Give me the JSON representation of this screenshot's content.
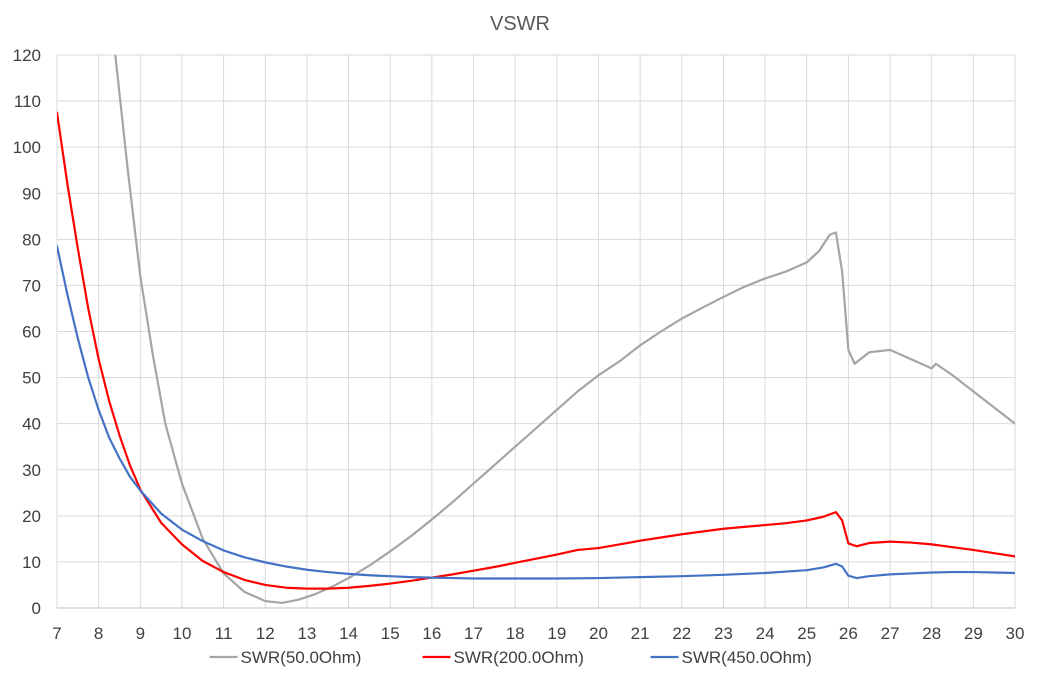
{
  "chart_data": {
    "type": "line",
    "title": "VSWR",
    "xlabel": "",
    "ylabel": "",
    "xlim": [
      7,
      30
    ],
    "ylim": [
      0,
      120
    ],
    "x_ticks": [
      "7",
      "8",
      "9",
      "10",
      "11",
      "12",
      "13",
      "14",
      "15",
      "16",
      "17",
      "18",
      "19",
      "20",
      "21",
      "22",
      "23",
      "24",
      "25",
      "26",
      "27",
      "28",
      "29",
      "30"
    ],
    "y_ticks": [
      "0",
      "10",
      "20",
      "30",
      "40",
      "50",
      "60",
      "70",
      "80",
      "90",
      "100",
      "110",
      "120"
    ],
    "grid": true,
    "legend_position": "bottom",
    "series": [
      {
        "name": "SWR(50.0Ohm)",
        "color": "#a5a5a5",
        "points": [
          [
            8.4,
            120
          ],
          [
            8.7,
            95
          ],
          [
            9.0,
            72
          ],
          [
            9.3,
            55
          ],
          [
            9.6,
            40
          ],
          [
            10.0,
            27
          ],
          [
            10.5,
            15
          ],
          [
            11.0,
            7.5
          ],
          [
            11.5,
            3.5
          ],
          [
            12.0,
            1.5
          ],
          [
            12.4,
            1.1
          ],
          [
            12.8,
            1.8
          ],
          [
            13.2,
            3.0
          ],
          [
            13.6,
            4.6
          ],
          [
            14.0,
            6.5
          ],
          [
            14.5,
            9.2
          ],
          [
            15.0,
            12.3
          ],
          [
            15.5,
            15.6
          ],
          [
            16.0,
            19.2
          ],
          [
            16.5,
            23.0
          ],
          [
            17.0,
            27.0
          ],
          [
            17.5,
            31.0
          ],
          [
            18.0,
            35.0
          ],
          [
            18.5,
            39.0
          ],
          [
            19.0,
            43.0
          ],
          [
            19.5,
            47.0
          ],
          [
            20.0,
            50.5
          ],
          [
            20.5,
            53.5
          ],
          [
            21.0,
            57.0
          ],
          [
            21.5,
            60.0
          ],
          [
            22.0,
            62.8
          ],
          [
            22.5,
            65.2
          ],
          [
            23.0,
            67.5
          ],
          [
            23.5,
            69.7
          ],
          [
            24.0,
            71.5
          ],
          [
            24.5,
            73.0
          ],
          [
            25.0,
            75.0
          ],
          [
            25.3,
            77.5
          ],
          [
            25.55,
            81.0
          ],
          [
            25.7,
            81.5
          ],
          [
            25.85,
            73.0
          ],
          [
            26.0,
            56.0
          ],
          [
            26.15,
            53.0
          ],
          [
            26.5,
            55.5
          ],
          [
            27.0,
            56.0
          ],
          [
            27.5,
            54.0
          ],
          [
            28.0,
            52.0
          ],
          [
            28.1,
            53.0
          ],
          [
            28.5,
            50.5
          ],
          [
            29.0,
            47.0
          ],
          [
            29.5,
            43.5
          ],
          [
            30.0,
            40.0
          ]
        ]
      },
      {
        "name": "SWR(200.0Ohm)",
        "color": "#ff0000",
        "points": [
          [
            7.0,
            107.5
          ],
          [
            7.25,
            92.0
          ],
          [
            7.5,
            78.0
          ],
          [
            7.75,
            65.0
          ],
          [
            8.0,
            54.0
          ],
          [
            8.25,
            45.0
          ],
          [
            8.5,
            37.5
          ],
          [
            8.75,
            31.0
          ],
          [
            9.0,
            25.7
          ],
          [
            9.5,
            18.5
          ],
          [
            10.0,
            13.8
          ],
          [
            10.5,
            10.2
          ],
          [
            11.0,
            7.8
          ],
          [
            11.5,
            6.1
          ],
          [
            12.0,
            5.0
          ],
          [
            12.5,
            4.4
          ],
          [
            13.0,
            4.2
          ],
          [
            13.5,
            4.2
          ],
          [
            14.0,
            4.4
          ],
          [
            14.5,
            4.8
          ],
          [
            15.0,
            5.3
          ],
          [
            15.5,
            5.9
          ],
          [
            16.0,
            6.6
          ],
          [
            16.5,
            7.3
          ],
          [
            17.0,
            8.1
          ],
          [
            17.5,
            8.9
          ],
          [
            18.0,
            9.8
          ],
          [
            18.5,
            10.7
          ],
          [
            19.0,
            11.6
          ],
          [
            19.5,
            12.6
          ],
          [
            20.0,
            13.0
          ],
          [
            20.5,
            13.8
          ],
          [
            21.0,
            14.6
          ],
          [
            21.5,
            15.3
          ],
          [
            22.0,
            16.0
          ],
          [
            22.5,
            16.6
          ],
          [
            23.0,
            17.2
          ],
          [
            23.5,
            17.6
          ],
          [
            24.0,
            18.0
          ],
          [
            24.5,
            18.4
          ],
          [
            25.0,
            19.0
          ],
          [
            25.4,
            19.8
          ],
          [
            25.7,
            20.8
          ],
          [
            25.85,
            19.0
          ],
          [
            26.0,
            14.0
          ],
          [
            26.2,
            13.4
          ],
          [
            26.5,
            14.1
          ],
          [
            27.0,
            14.4
          ],
          [
            27.5,
            14.2
          ],
          [
            28.0,
            13.8
          ],
          [
            28.5,
            13.2
          ],
          [
            29.0,
            12.6
          ],
          [
            29.5,
            11.9
          ],
          [
            30.0,
            11.2
          ]
        ]
      },
      {
        "name": "SWR(450.0Ohm)",
        "color": "#4472c4",
        "points": [
          [
            7.0,
            78.5
          ],
          [
            7.25,
            68.0
          ],
          [
            7.5,
            58.5
          ],
          [
            7.75,
            50.0
          ],
          [
            8.0,
            43.0
          ],
          [
            8.25,
            37.0
          ],
          [
            8.5,
            32.5
          ],
          [
            8.75,
            28.5
          ],
          [
            9.0,
            25.5
          ],
          [
            9.5,
            20.5
          ],
          [
            10.0,
            17.0
          ],
          [
            10.5,
            14.5
          ],
          [
            11.0,
            12.5
          ],
          [
            11.5,
            11.0
          ],
          [
            12.0,
            9.9
          ],
          [
            12.5,
            9.0
          ],
          [
            13.0,
            8.3
          ],
          [
            13.5,
            7.8
          ],
          [
            14.0,
            7.4
          ],
          [
            14.5,
            7.1
          ],
          [
            15.0,
            6.9
          ],
          [
            15.5,
            6.7
          ],
          [
            16.0,
            6.6
          ],
          [
            16.5,
            6.5
          ],
          [
            17.0,
            6.4
          ],
          [
            18.0,
            6.4
          ],
          [
            19.0,
            6.4
          ],
          [
            20.0,
            6.5
          ],
          [
            21.0,
            6.7
          ],
          [
            22.0,
            6.9
          ],
          [
            23.0,
            7.2
          ],
          [
            24.0,
            7.6
          ],
          [
            25.0,
            8.2
          ],
          [
            25.4,
            8.8
          ],
          [
            25.7,
            9.6
          ],
          [
            25.85,
            9.0
          ],
          [
            26.0,
            7.0
          ],
          [
            26.2,
            6.5
          ],
          [
            26.5,
            6.9
          ],
          [
            27.0,
            7.3
          ],
          [
            27.5,
            7.5
          ],
          [
            28.0,
            7.7
          ],
          [
            28.5,
            7.8
          ],
          [
            29.0,
            7.8
          ],
          [
            29.5,
            7.7
          ],
          [
            30.0,
            7.6
          ]
        ]
      }
    ]
  }
}
